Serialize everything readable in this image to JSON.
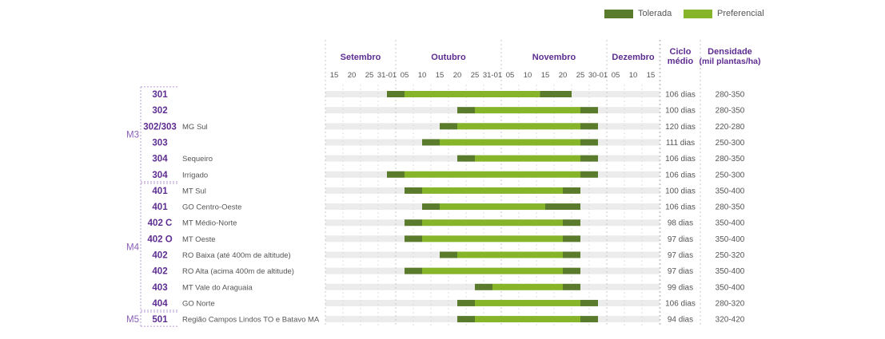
{
  "legend": [
    {
      "label": "Tolerada",
      "color": "#5a7a2c"
    },
    {
      "label": "Preferencial",
      "color": "#86b52a"
    }
  ],
  "colors": {
    "accent": "#5e2d91",
    "group_line": "#b89bd4",
    "track": "#ececec",
    "text": "#555555"
  },
  "chart_data": {
    "type": "bar",
    "subtype": "gantt",
    "months": [
      {
        "label": "Setembro",
        "ticks": [
          "15",
          "20",
          "25",
          "31-01"
        ]
      },
      {
        "label": "Outubro",
        "ticks": [
          "05",
          "10",
          "15",
          "20",
          "25",
          "31-01"
        ]
      },
      {
        "label": "Novembro",
        "ticks": [
          "05",
          "10",
          "15",
          "20",
          "25",
          "30-01"
        ]
      },
      {
        "label": "Dezembro",
        "ticks": [
          "05",
          "10",
          "15"
        ]
      }
    ],
    "ticks": [
      "15",
      "20",
      "25",
      "31-01",
      "05",
      "10",
      "15",
      "20",
      "25",
      "31-01",
      "05",
      "10",
      "15",
      "20",
      "25",
      "30-01",
      "05",
      "10",
      "15"
    ],
    "columns": {
      "cycle": "Ciclo médio",
      "density": "Densidade",
      "density_unit": "(mil plantas/ha)"
    },
    "groups": [
      {
        "label": "M3",
        "rows": [
          0,
          5
        ]
      },
      {
        "label": "M4",
        "rows": [
          6,
          13
        ]
      },
      {
        "label": "M5",
        "rows": [
          14,
          14
        ]
      }
    ],
    "rows": [
      {
        "code": "301",
        "region": "",
        "tolerated": [
          [
            3.5,
            4.5
          ],
          [
            12.2,
            14.0
          ]
        ],
        "preferential": [
          4.5,
          12.2
        ],
        "cycle": "106 dias",
        "density": "280-350"
      },
      {
        "code": "302",
        "region": "",
        "tolerated": [
          [
            7.5,
            8.5
          ],
          [
            14.5,
            15.5
          ]
        ],
        "preferential": [
          8.5,
          14.5
        ],
        "cycle": "100 dias",
        "density": "280-350"
      },
      {
        "code": "302/303",
        "region": "MG Sul",
        "tolerated": [
          [
            6.5,
            7.5
          ],
          [
            14.5,
            15.5
          ]
        ],
        "preferential": [
          7.5,
          14.5
        ],
        "cycle": "120 dias",
        "density": "220-280"
      },
      {
        "code": "303",
        "region": "",
        "tolerated": [
          [
            5.5,
            6.5
          ],
          [
            14.5,
            15.5
          ]
        ],
        "preferential": [
          6.5,
          14.5
        ],
        "cycle": "111 dias",
        "density": "250-300"
      },
      {
        "code": "304",
        "region": "Sequeiro",
        "tolerated": [
          [
            7.5,
            8.5
          ],
          [
            14.5,
            15.5
          ]
        ],
        "preferential": [
          8.5,
          14.5
        ],
        "cycle": "106 dias",
        "density": "280-350"
      },
      {
        "code": "304",
        "region": "Irrigado",
        "tolerated": [
          [
            3.5,
            4.5
          ],
          [
            14.5,
            15.5
          ]
        ],
        "preferential": [
          4.5,
          14.5
        ],
        "cycle": "106 dias",
        "density": "250-300"
      },
      {
        "code": "401",
        "region": "MT Sul",
        "tolerated": [
          [
            4.5,
            5.5
          ],
          [
            13.5,
            14.5
          ]
        ],
        "preferential": [
          5.5,
          13.5
        ],
        "cycle": "100 dias",
        "density": "350-400"
      },
      {
        "code": "401",
        "region": "GO Centro-Oeste",
        "tolerated": [
          [
            5.5,
            6.5
          ],
          [
            12.5,
            14.5
          ]
        ],
        "preferential": [
          6.5,
          12.5
        ],
        "cycle": "106 dias",
        "density": "280-350"
      },
      {
        "code": "402 C",
        "region": "MT Médio-Norte",
        "tolerated": [
          [
            4.5,
            5.5
          ],
          [
            13.5,
            14.5
          ]
        ],
        "preferential": [
          5.5,
          13.5
        ],
        "cycle": "98 dias",
        "density": "350-400"
      },
      {
        "code": "402 O",
        "region": "MT Oeste",
        "tolerated": [
          [
            4.5,
            5.5
          ],
          [
            13.5,
            14.5
          ]
        ],
        "preferential": [
          5.5,
          13.5
        ],
        "cycle": "97 dias",
        "density": "350-400"
      },
      {
        "code": "402",
        "region": "RO Baixa (até 400m de altitude)",
        "tolerated": [
          [
            6.5,
            7.5
          ],
          [
            13.5,
            14.5
          ]
        ],
        "preferential": [
          7.5,
          13.5
        ],
        "cycle": "97 dias",
        "density": "250-320"
      },
      {
        "code": "402",
        "region": "RO Alta (acima 400m de altitude)",
        "tolerated": [
          [
            4.5,
            5.5
          ],
          [
            13.5,
            14.5
          ]
        ],
        "preferential": [
          5.5,
          13.5
        ],
        "cycle": "97 dias",
        "density": "350-400"
      },
      {
        "code": "403",
        "region": "MT Vale do Araguaia",
        "tolerated": [
          [
            8.5,
            9.5
          ],
          [
            13.5,
            14.5
          ]
        ],
        "preferential": [
          9.5,
          13.5
        ],
        "cycle": "99 dias",
        "density": "350-400"
      },
      {
        "code": "404",
        "region": "GO Norte",
        "tolerated": [
          [
            7.5,
            8.5
          ],
          [
            14.5,
            15.5
          ]
        ],
        "preferential": [
          8.5,
          14.5
        ],
        "cycle": "106 dias",
        "density": "280-320"
      },
      {
        "code": "501",
        "region": "Região Campos Lindos TO e Batavo MA",
        "tolerated": [
          [
            7.5,
            8.5
          ],
          [
            14.5,
            15.5
          ]
        ],
        "preferential": [
          8.5,
          14.5
        ],
        "cycle": "94 dias",
        "density": "320-420"
      }
    ]
  }
}
